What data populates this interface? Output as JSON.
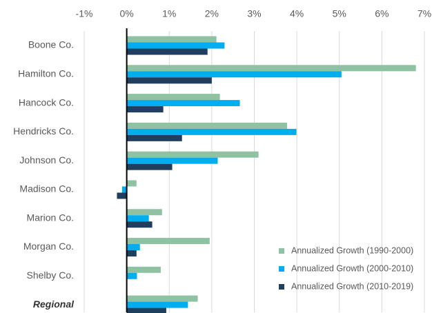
{
  "chart_data": {
    "type": "hbar",
    "categories": [
      "Boone Co.",
      "Hamilton Co.",
      "Hancock Co.",
      "Hendricks Co.",
      "Johnson Co.",
      "Madison Co.",
      "Marion Co.",
      "Morgan Co.",
      "Shelby Co.",
      "Regional"
    ],
    "series": [
      {
        "name": "Annualized Growth (1990-2000)",
        "color": "#8fc2a2",
        "values": [
          2.11,
          6.8,
          2.19,
          3.77,
          3.1,
          0.23,
          0.83,
          1.95,
          0.8,
          1.67
        ]
      },
      {
        "name": "Annualized Growth (2000-2010)",
        "color": "#00adef",
        "values": [
          2.3,
          5.05,
          2.66,
          3.99,
          2.14,
          -0.11,
          0.52,
          0.31,
          0.24,
          1.44
        ]
      },
      {
        "name": "Annualized Growth (2010-2019)",
        "color": "#203f5e",
        "values": [
          1.9,
          2.0,
          0.86,
          1.3,
          1.07,
          -0.23,
          0.6,
          0.23,
          null,
          0.93
        ]
      }
    ],
    "xlim": [
      -1,
      7
    ],
    "xticks": [
      {
        "value": -1,
        "label": "-1%"
      },
      {
        "value": 0,
        "label": "0%"
      },
      {
        "value": 1,
        "label": "1%"
      },
      {
        "value": 2,
        "label": "2%"
      },
      {
        "value": 3,
        "label": "3%"
      },
      {
        "value": 4,
        "label": "4%"
      },
      {
        "value": 5,
        "label": "5%"
      },
      {
        "value": 6,
        "label": "6%"
      },
      {
        "value": 7,
        "label": "7%"
      }
    ],
    "grid": true,
    "legend": "lower right"
  }
}
